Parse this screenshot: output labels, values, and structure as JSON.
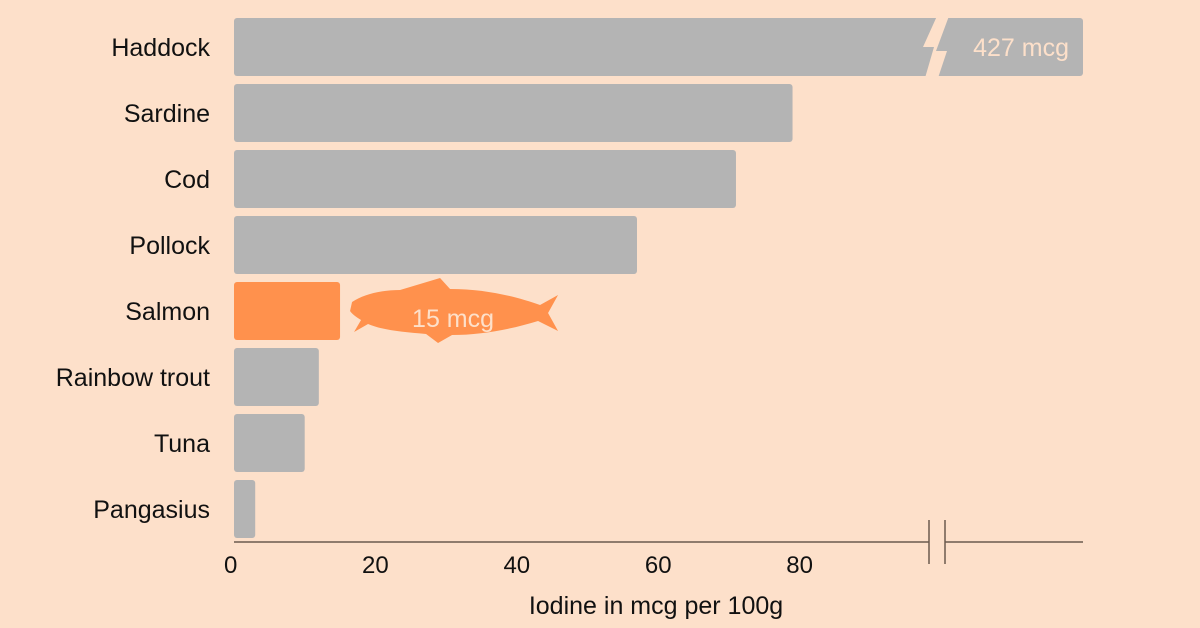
{
  "chart_data": {
    "type": "bar",
    "orientation": "horizontal",
    "categories": [
      "Haddock",
      "Sardine",
      "Cod",
      "Pollock",
      "Salmon",
      "Rainbow trout",
      "Tuna",
      "Pangasius"
    ],
    "values": [
      427,
      79,
      71,
      57,
      15,
      12,
      10,
      3
    ],
    "xlabel": "Iodine in mcg per 100g",
    "xticks": [
      0,
      20,
      40,
      60,
      80
    ],
    "xlim": [
      0,
      120
    ],
    "axis_break": true,
    "grid": false,
    "highlight": "Salmon",
    "annotations": [
      {
        "category": "Haddock",
        "text": "427 mcg"
      },
      {
        "category": "Salmon",
        "text": "15 mcg"
      }
    ],
    "colors": {
      "background": "#fde0ca",
      "bar": "#b4b4b4",
      "highlight": "#ff914d",
      "label_on_bar": "#fde0ca",
      "axis": "#6b5a4e",
      "text": "#111111"
    }
  }
}
